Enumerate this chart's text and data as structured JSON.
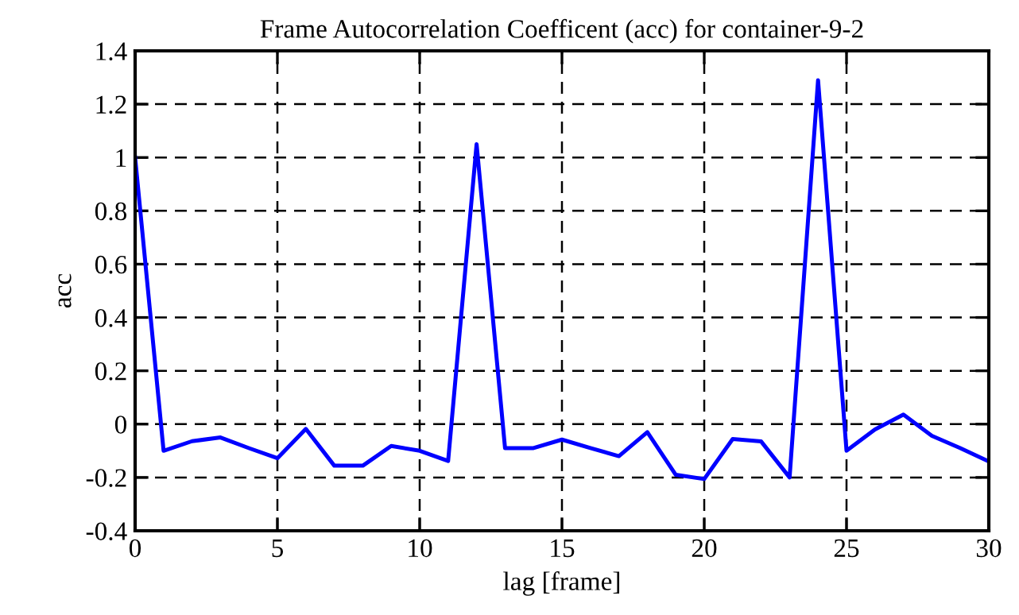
{
  "chart_data": {
    "type": "line",
    "title": "Frame Autocorrelation Coefficent (acc) for container-9-2",
    "xlabel": "lag [frame]",
    "ylabel": "acc",
    "x": [
      0,
      1,
      2,
      3,
      4,
      5,
      6,
      7,
      8,
      9,
      10,
      11,
      12,
      13,
      14,
      15,
      16,
      17,
      18,
      19,
      20,
      21,
      22,
      23,
      24,
      25,
      26,
      27,
      28,
      29,
      30
    ],
    "series": [
      {
        "color": "#0000ff",
        "values": [
          1.0,
          -0.1,
          -0.064,
          -0.05,
          -0.09,
          -0.128,
          -0.018,
          -0.156,
          -0.156,
          -0.082,
          -0.1,
          -0.138,
          1.05,
          -0.09,
          -0.09,
          -0.058,
          -0.09,
          -0.12,
          -0.03,
          -0.19,
          -0.206,
          -0.056,
          -0.065,
          -0.2,
          1.29,
          -0.1,
          -0.02,
          0.036,
          -0.044,
          -0.09,
          -0.14
        ]
      }
    ],
    "xlim": [
      0,
      30
    ],
    "xticks": [
      0,
      5,
      10,
      15,
      20,
      25,
      30
    ],
    "ylim": [
      -0.4,
      1.4
    ],
    "yticks": [
      -0.4,
      -0.2,
      0,
      0.2,
      0.4,
      0.6,
      0.8,
      1,
      1.2,
      1.4
    ],
    "grid": true,
    "line_style": "solid",
    "marker": "none",
    "legend": false
  }
}
